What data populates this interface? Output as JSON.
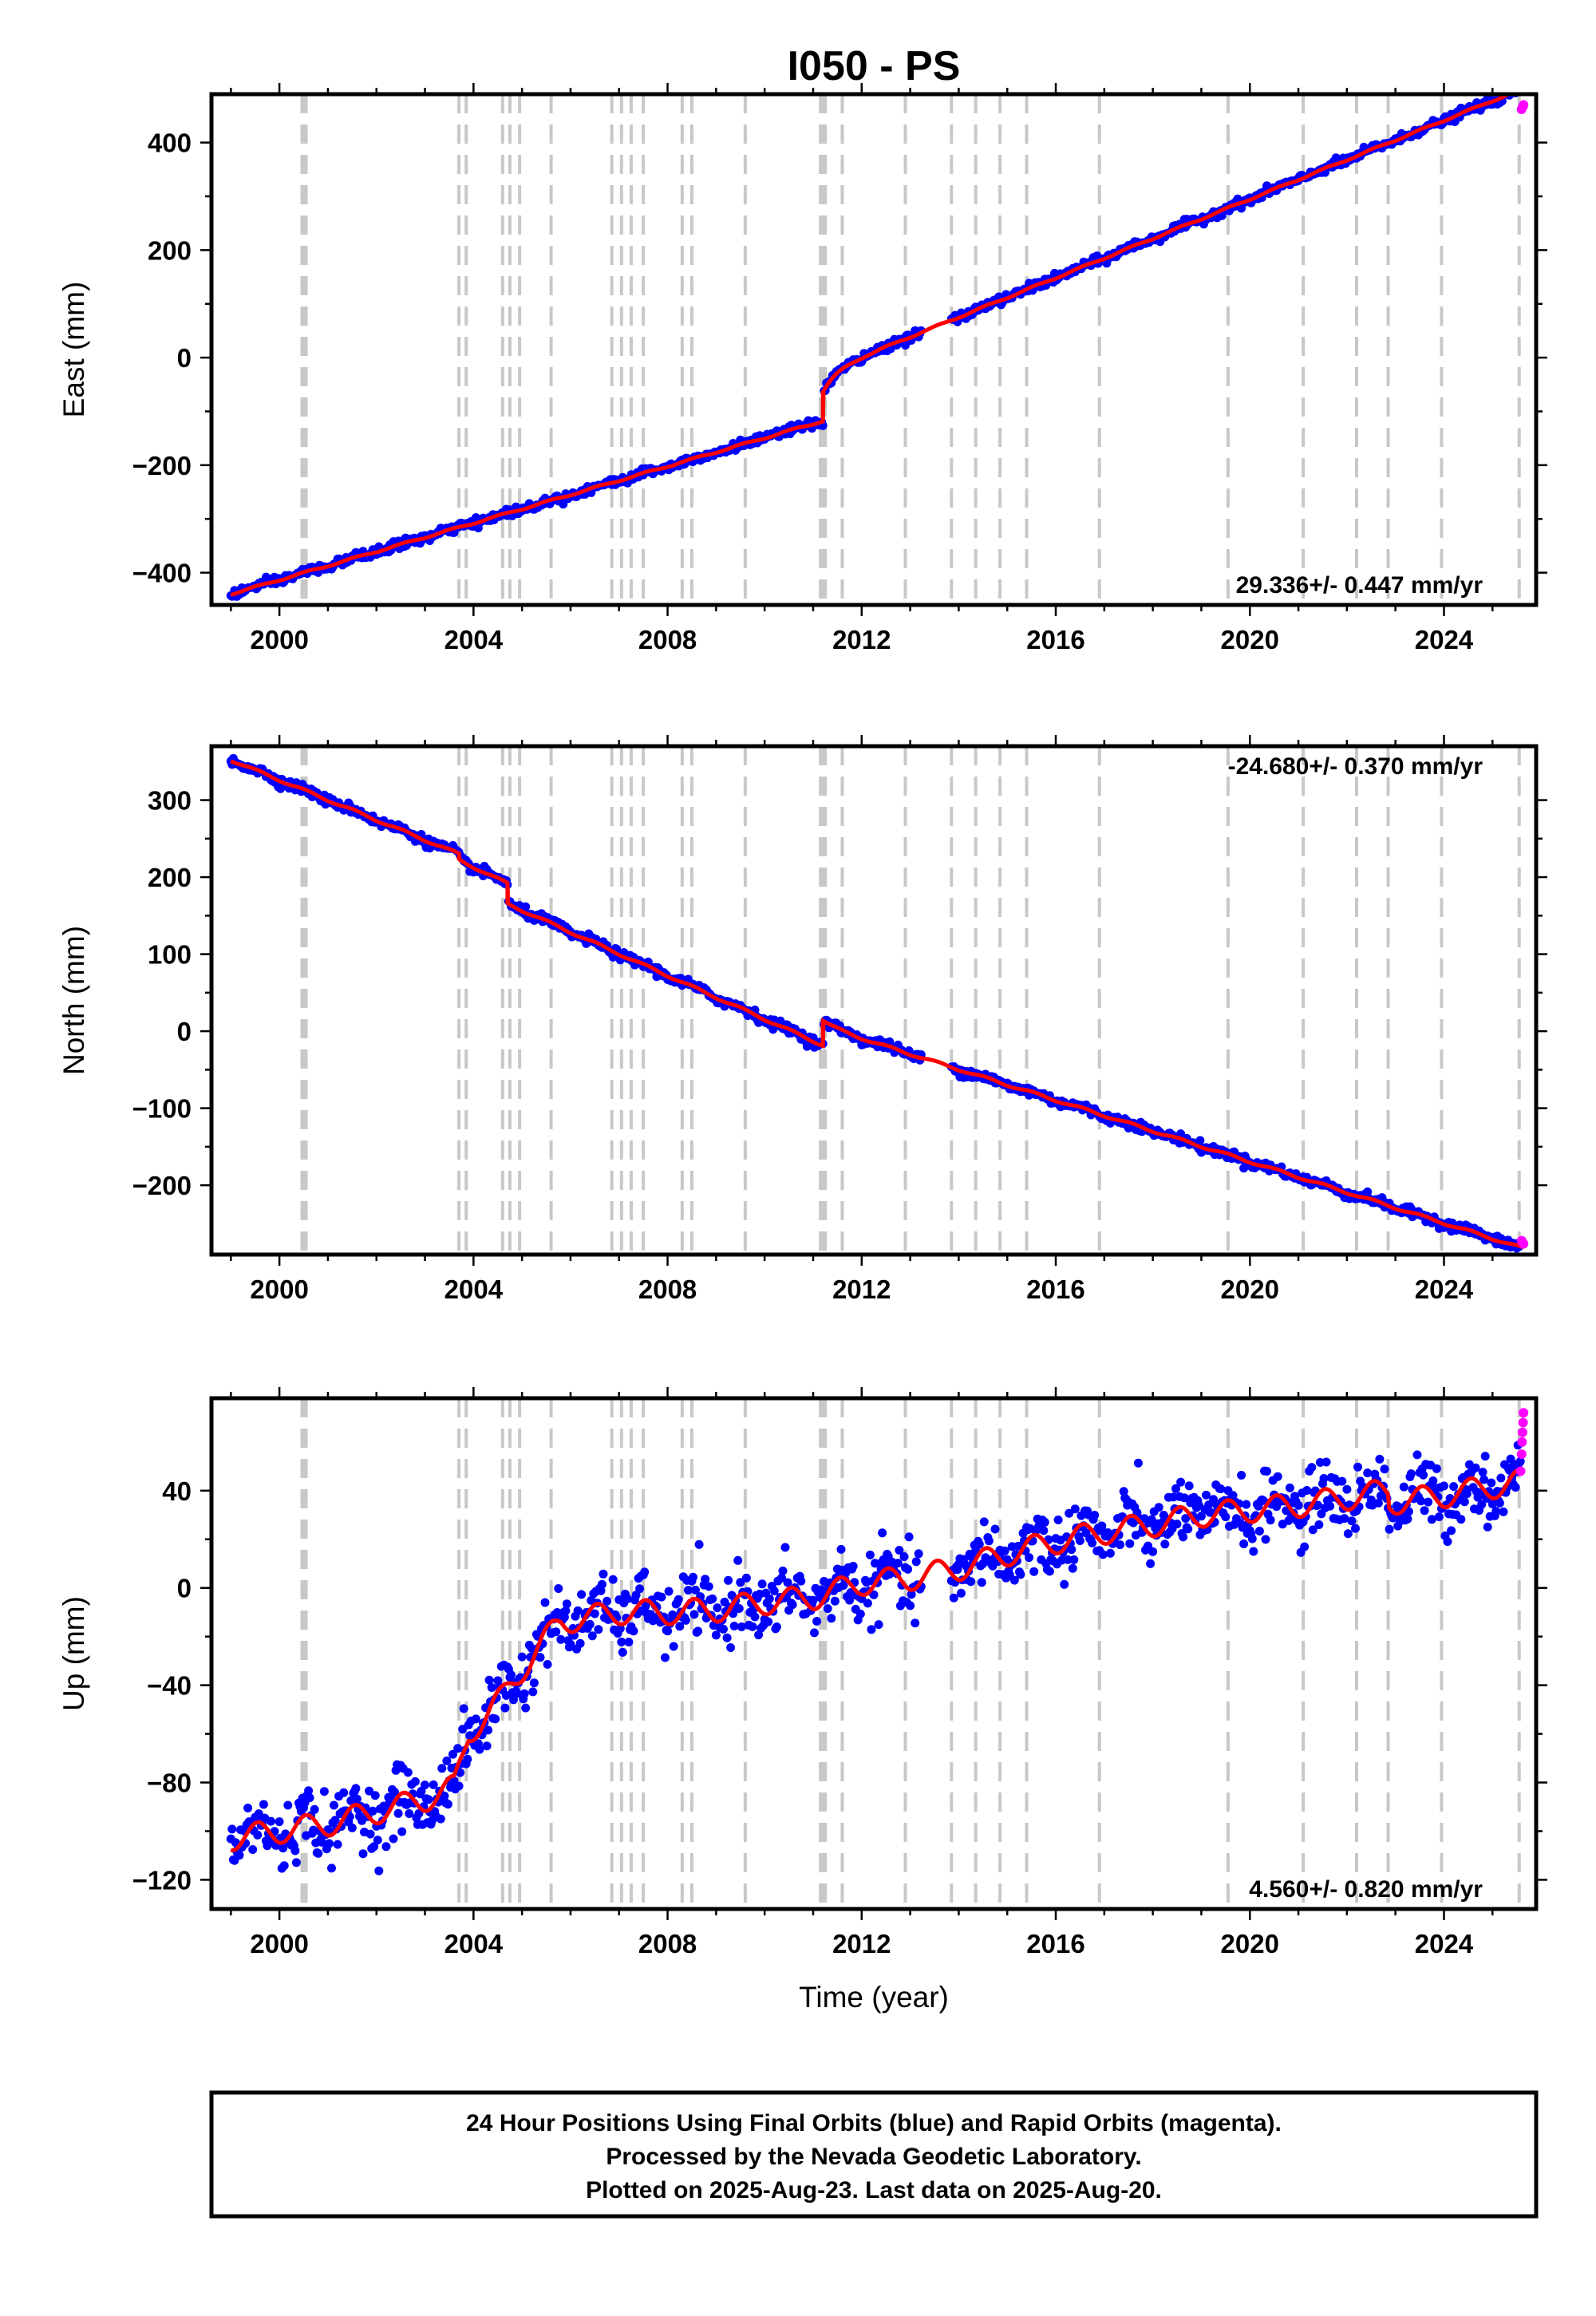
{
  "title": "I050 - PS",
  "x_axis_label": "Time (year)",
  "colors": {
    "final_orbits": "#0000ff",
    "rapid_orbits": "#ff00ff",
    "model": "#ff0000",
    "events": "#c8c8c8"
  },
  "footer": {
    "line1": "24 Hour Positions Using Final Orbits (blue) and Rapid Orbits (magenta).",
    "line2": "Processed by the Nevada Geodetic Laboratory.",
    "line3": "Plotted on 2025-Aug-23. Last data on 2025-Aug-20."
  },
  "chart_data": [
    {
      "type": "scatter",
      "component": "east",
      "ylabel": "East (mm)",
      "rate_text": "29.336+/- 0.447 mm/yr",
      "xlim": [
        1998.6,
        2025.9
      ],
      "ylim": [
        -460,
        490
      ],
      "xticks": [
        2000,
        2004,
        2008,
        2012,
        2016,
        2020,
        2024
      ],
      "yticks": [
        -400,
        -200,
        0,
        200,
        400
      ],
      "grid": false,
      "event_lines": [
        2000.5,
        2000.55,
        2003.7,
        2003.85,
        2004.6,
        2004.75,
        2004.95,
        2005.6,
        2006.85,
        2007.05,
        2007.25,
        2007.5,
        2008.3,
        2008.5,
        2009.6,
        2011.15,
        2011.25,
        2011.6,
        2012.9,
        2013.85,
        2014.35,
        2014.85,
        2015.4,
        2016.9,
        2019.55,
        2021.1,
        2022.2,
        2022.85,
        2023.95,
        2025.55
      ],
      "major_event_lines": [
        2000.5,
        2011.2
      ],
      "segments": [
        {
          "x_start": 1999.0,
          "x_end": 2011.19,
          "y_start": -440,
          "y_end": -118
        },
        {
          "x_start": 2011.21,
          "x_end": 2025.64,
          "y_start": -62,
          "y_end": 466
        }
      ],
      "step_events": [
        [
          2011.2,
          -118,
          -62
        ]
      ],
      "postseismic": {
        "at": 2011.21,
        "amplitude": 35,
        "tau_years": 0.3
      },
      "seasonal_amplitude": 1.5,
      "noise_sd": 4,
      "gaps": [
        [
          2013.25,
          2013.85
        ]
      ],
      "rapid_points": [
        [
          2025.6,
          462
        ],
        [
          2025.62,
          466
        ],
        [
          2025.64,
          470
        ]
      ]
    },
    {
      "type": "scatter",
      "component": "north",
      "ylabel": "North (mm)",
      "rate_text": "-24.680+/- 0.370 mm/yr",
      "xlim": [
        1998.6,
        2025.9
      ],
      "ylim": [
        -290,
        370
      ],
      "xticks": [
        2000,
        2004,
        2008,
        2012,
        2016,
        2020,
        2024
      ],
      "yticks": [
        -200,
        -100,
        0,
        100,
        200,
        300
      ],
      "grid": false,
      "event_lines": [
        2000.5,
        2000.55,
        2003.7,
        2003.85,
        2004.6,
        2004.75,
        2004.95,
        2005.6,
        2006.85,
        2007.05,
        2007.25,
        2007.5,
        2008.3,
        2008.5,
        2009.6,
        2011.15,
        2011.25,
        2011.6,
        2012.9,
        2013.85,
        2014.35,
        2014.85,
        2015.4,
        2016.9,
        2019.55,
        2021.1,
        2022.2,
        2022.85,
        2023.95,
        2025.55
      ],
      "major_event_lines": [
        2000.5,
        2011.2
      ],
      "segments": [
        {
          "x_start": 1999.0,
          "x_end": 2003.7,
          "y_start": 352,
          "y_end": 230
        },
        {
          "x_start": 2003.71,
          "x_end": 2004.69,
          "y_start": 222,
          "y_end": 192
        },
        {
          "x_start": 2004.71,
          "x_end": 2011.19,
          "y_start": 165,
          "y_end": -18
        },
        {
          "x_start": 2011.21,
          "x_end": 2025.64,
          "y_start": 14,
          "y_end": -274
        }
      ],
      "step_events": [
        [
          2003.7,
          230,
          222
        ],
        [
          2004.7,
          192,
          165
        ],
        [
          2011.2,
          -18,
          14
        ]
      ],
      "postseismic": {
        "at": 2011.21,
        "amplitude": -8,
        "tau_years": 0.3
      },
      "seasonal_amplitude": 1.5,
      "noise_sd": 3,
      "gaps": [
        [
          2013.25,
          2013.85
        ]
      ],
      "rapid_points": [
        [
          2025.6,
          -272
        ],
        [
          2025.62,
          -274
        ],
        [
          2025.64,
          -276
        ]
      ]
    },
    {
      "type": "scatter",
      "component": "up",
      "ylabel": "Up (mm)",
      "rate_text": "4.560+/- 0.820 mm/yr",
      "xlim": [
        1998.6,
        2025.9
      ],
      "ylim": [
        -132,
        78
      ],
      "xticks": [
        2000,
        2004,
        2008,
        2012,
        2016,
        2020,
        2024
      ],
      "yticks": [
        -120,
        -80,
        -40,
        0,
        40
      ],
      "grid": false,
      "event_lines": [
        2000.5,
        2000.55,
        2003.7,
        2003.85,
        2004.6,
        2004.75,
        2004.95,
        2005.6,
        2006.85,
        2007.05,
        2007.25,
        2007.5,
        2008.3,
        2008.5,
        2009.6,
        2011.15,
        2011.25,
        2011.6,
        2012.9,
        2013.85,
        2014.35,
        2014.85,
        2015.4,
        2016.9,
        2019.55,
        2021.1,
        2022.2,
        2022.85,
        2023.95,
        2025.55
      ],
      "major_event_lines": [
        2000.5,
        2011.2
      ],
      "model_knots": [
        [
          1999.0,
          -103
        ],
        [
          2000.0,
          -100
        ],
        [
          2001.0,
          -97
        ],
        [
          2002.0,
          -92
        ],
        [
          2003.0,
          -87
        ],
        [
          2003.6,
          -82
        ],
        [
          2003.9,
          -60
        ],
        [
          2004.6,
          -45
        ],
        [
          2005.2,
          -28
        ],
        [
          2005.8,
          -14
        ],
        [
          2007.0,
          -10
        ],
        [
          2008.0,
          -10
        ],
        [
          2009.0,
          -9
        ],
        [
          2010.0,
          -6
        ],
        [
          2011.0,
          -4
        ],
        [
          2012.0,
          2
        ],
        [
          2013.0,
          4
        ],
        [
          2014.0,
          8
        ],
        [
          2015.0,
          14
        ],
        [
          2016.0,
          19
        ],
        [
          2017.0,
          23
        ],
        [
          2018.0,
          26
        ],
        [
          2019.0,
          30
        ],
        [
          2020.0,
          32
        ],
        [
          2021.0,
          34
        ],
        [
          2022.0,
          37
        ],
        [
          2022.85,
          40
        ],
        [
          2022.87,
          35
        ],
        [
          2024.0,
          38
        ],
        [
          2025.64,
          44
        ]
      ],
      "seasonal_amplitude": 5,
      "noise_sd": 6.5,
      "gaps": [
        [
          2013.25,
          2013.85
        ]
      ],
      "rapid_points": [
        [
          2025.58,
          48
        ],
        [
          2025.6,
          55
        ],
        [
          2025.61,
          60
        ],
        [
          2025.62,
          64
        ],
        [
          2025.63,
          68
        ],
        [
          2025.64,
          72
        ]
      ]
    }
  ]
}
